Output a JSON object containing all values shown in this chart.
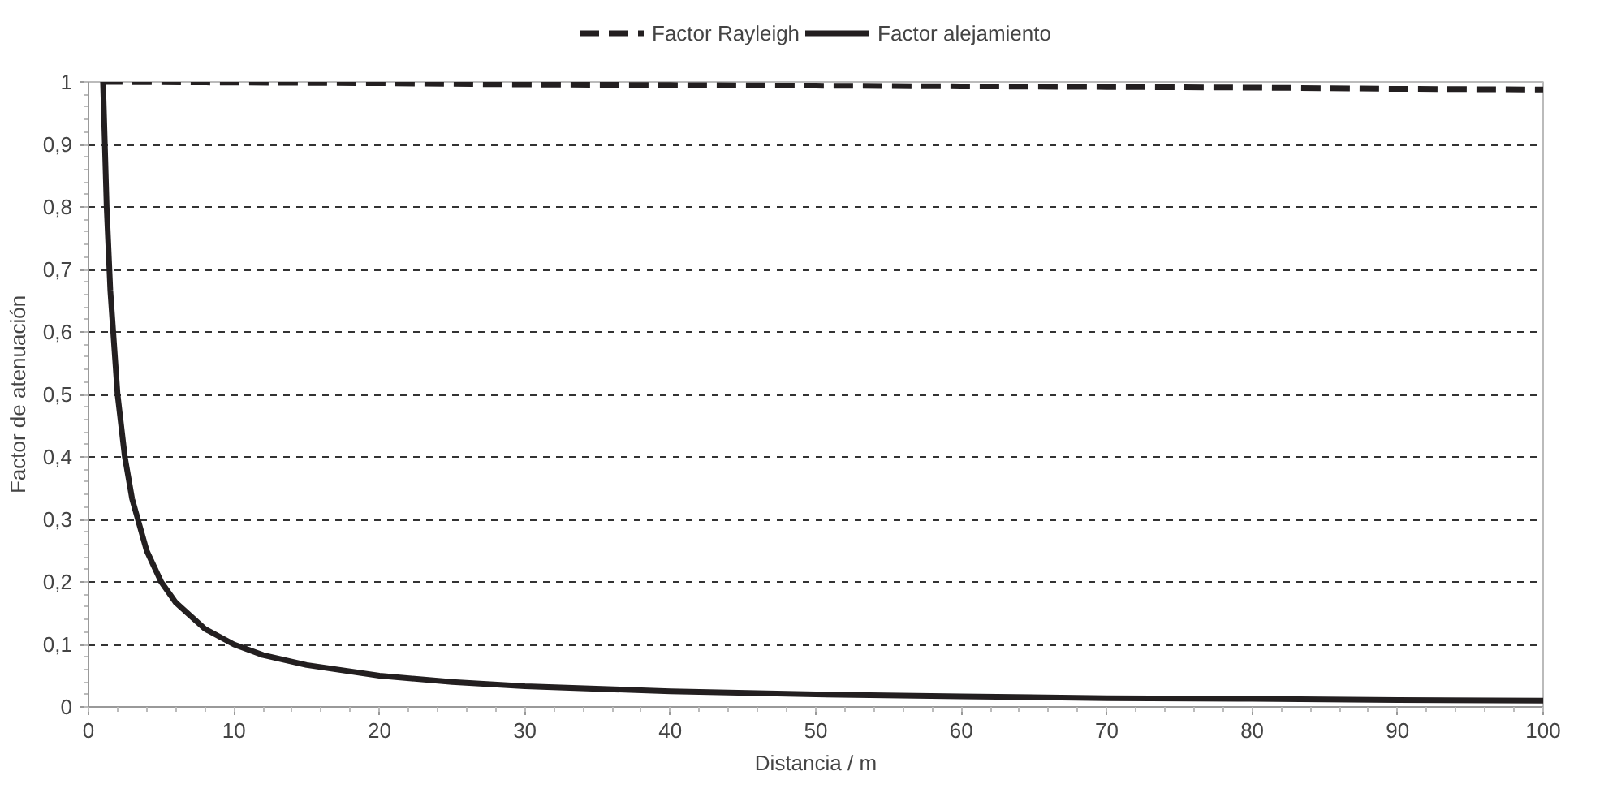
{
  "chart_data": {
    "type": "line",
    "xlabel": "Distancia / m",
    "ylabel": "Factor de atenuación",
    "xlim": [
      0,
      100
    ],
    "ylim": [
      0,
      1
    ],
    "xticks": [
      0,
      10,
      20,
      30,
      40,
      50,
      60,
      70,
      80,
      90,
      100
    ],
    "yticks": [
      0,
      {
        "value": 0.1,
        "label": "0,1"
      },
      {
        "value": 0.2,
        "label": "0,2"
      },
      {
        "value": 0.3,
        "label": "0,3"
      },
      {
        "value": 0.4,
        "label": "0,4"
      },
      {
        "value": 0.5,
        "label": "0,5"
      },
      {
        "value": 0.6,
        "label": "0,6"
      },
      {
        "value": 0.7,
        "label": "0,7"
      },
      {
        "value": 0.8,
        "label": "0,8"
      },
      {
        "value": 0.9,
        "label": "0,9"
      },
      1
    ],
    "grid": "y",
    "legend": "top",
    "marker": "none",
    "series": [
      {
        "name": "Factor Rayleigh",
        "color": "#231f20",
        "line_style": "dashed",
        "x": [
          1,
          10,
          20,
          30,
          40,
          50,
          60,
          70,
          80,
          90,
          100
        ],
        "values": [
          1.0,
          0.999,
          0.998,
          0.996,
          0.995,
          0.994,
          0.993,
          0.992,
          0.991,
          0.989,
          0.988
        ]
      },
      {
        "name": "Factor alejamiento",
        "color": "#231f20",
        "line_style": "solid",
        "x": [
          1,
          1.25,
          1.5,
          2,
          2.5,
          3,
          4,
          5,
          6,
          8,
          10,
          12,
          15,
          20,
          25,
          30,
          40,
          50,
          60,
          70,
          80,
          90,
          100
        ],
        "values": [
          1.0,
          0.8,
          0.667,
          0.5,
          0.4,
          0.333,
          0.25,
          0.2,
          0.167,
          0.125,
          0.1,
          0.083,
          0.067,
          0.05,
          0.04,
          0.033,
          0.025,
          0.02,
          0.017,
          0.014,
          0.013,
          0.011,
          0.01
        ]
      }
    ]
  }
}
